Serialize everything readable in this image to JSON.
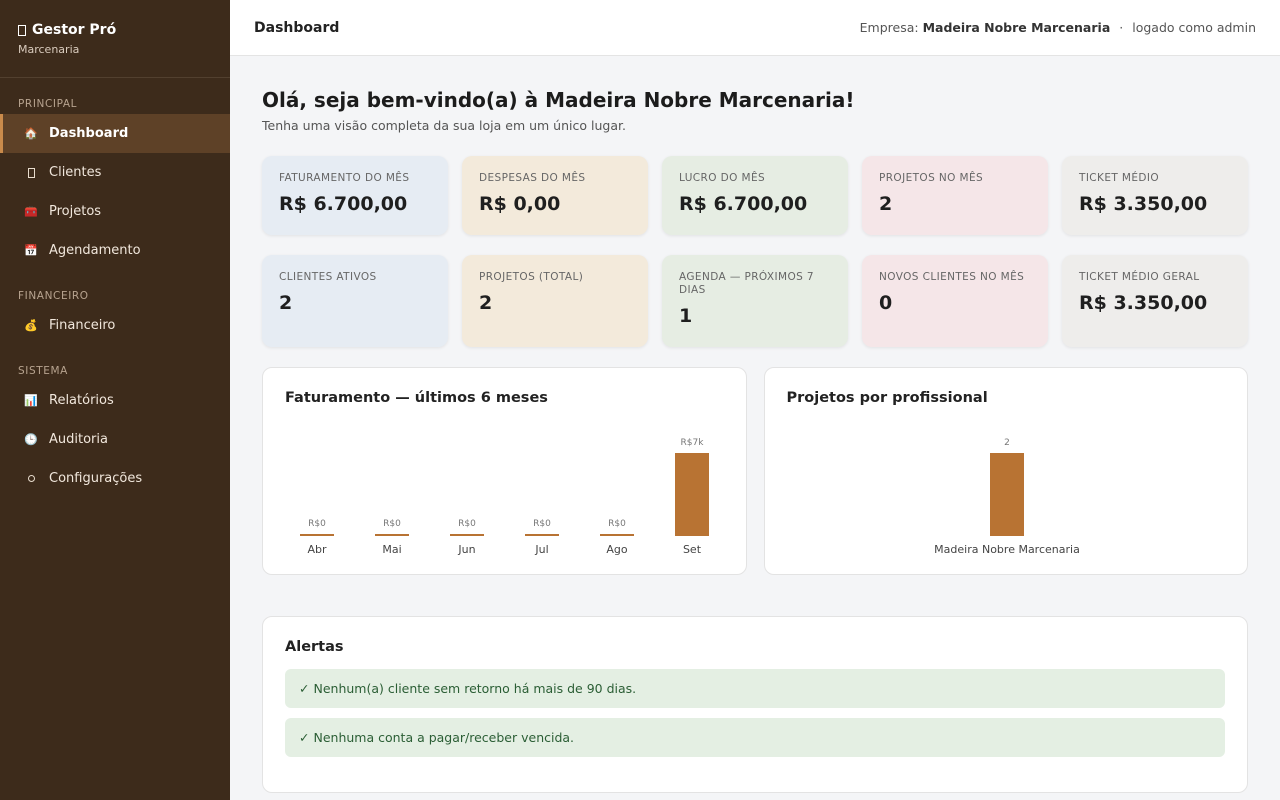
{
  "sidebar": {
    "brand_title": "Gestor Pró",
    "brand_subtitle": "Marcenaria",
    "sections": [
      {
        "title": "PRINCIPAL",
        "items": [
          {
            "label": "Dashboard",
            "icon": "house-icon",
            "glyph": "🏠",
            "active": true
          },
          {
            "label": "Clientes",
            "icon": "users-icon",
            "glyph": "",
            "active": false
          },
          {
            "label": "Projetos",
            "icon": "projects-icon",
            "glyph": "🧰",
            "active": false
          },
          {
            "label": "Agendamento",
            "icon": "calendar-icon",
            "glyph": "📅",
            "active": false
          }
        ]
      },
      {
        "title": "FINANCEIRO",
        "items": [
          {
            "label": "Financeiro",
            "icon": "money-bag-icon",
            "glyph": "💰",
            "active": false
          }
        ]
      },
      {
        "title": "SISTEMA",
        "items": [
          {
            "label": "Relatórios",
            "icon": "bar-chart-icon",
            "glyph": "📊",
            "active": false
          },
          {
            "label": "Auditoria",
            "icon": "clock-icon",
            "glyph": "🕒",
            "active": false
          },
          {
            "label": "Configurações",
            "icon": "gear-icon",
            "glyph": "",
            "active": false
          }
        ]
      }
    ]
  },
  "topbar": {
    "title": "Dashboard",
    "company_label": "Empresa:",
    "company_name": "Madeira Nobre Marcenaria",
    "separator": "·",
    "logged_as": "logado como admin"
  },
  "main": {
    "greeting": "Olá, seja bem-vindo(a) à Madeira Nobre Marcenaria!",
    "greeting_sub": "Tenha uma visão completa da sua loja em um único lugar.",
    "cards_row1": [
      {
        "label": "FATURAMENTO DO MÊS",
        "value": "R$ 6.700,00",
        "color": "#e6ecf3"
      },
      {
        "label": "DESPESAS DO MÊS",
        "value": "R$ 0,00",
        "color": "#f3eadb"
      },
      {
        "label": "LUCRO DO MÊS",
        "value": "R$ 6.700,00",
        "color": "#e6ede3"
      },
      {
        "label": "PROJETOS NO MÊS",
        "value": "2",
        "color": "#f5e6e8"
      },
      {
        "label": "TICKET MÉDIO",
        "value": "R$ 3.350,00",
        "color": "#eeedeb"
      }
    ],
    "cards_row2": [
      {
        "label": "CLIENTES ATIVOS",
        "value": "2",
        "color": "#e6ecf3"
      },
      {
        "label": "PROJETOS (TOTAL)",
        "value": "2",
        "color": "#f3eadb"
      },
      {
        "label": "AGENDA — PRÓXIMOS 7 DIAS",
        "value": "1",
        "color": "#e6ede3"
      },
      {
        "label": "NOVOS CLIENTES NO MÊS",
        "value": "0",
        "color": "#f5e6e8"
      },
      {
        "label": "TICKET MÉDIO GERAL",
        "value": "R$ 3.350,00",
        "color": "#eeedeb"
      }
    ]
  },
  "chart_data": [
    {
      "type": "bar",
      "title": "Faturamento — últimos 6 meses",
      "categories": [
        "Abr",
        "Mai",
        "Jun",
        "Jul",
        "Ago",
        "Set"
      ],
      "values": [
        0,
        0,
        0,
        0,
        0,
        6700
      ],
      "data_labels": [
        "R$0",
        "R$0",
        "R$0",
        "R$0",
        "R$0",
        "R$7k"
      ],
      "ylim": [
        0,
        6700
      ],
      "grid": false,
      "bar_color": "#b87333"
    },
    {
      "type": "bar",
      "title": "Projetos por profissional",
      "categories": [
        "Madeira Nobre Marcenaria"
      ],
      "values": [
        2
      ],
      "data_labels": [
        "2"
      ],
      "ylim": [
        0,
        2
      ],
      "grid": false,
      "bar_color": "#b87333"
    }
  ],
  "alerts": {
    "title": "Alertas",
    "items": [
      {
        "text": "Nenhum(a) cliente sem retorno há mais de 90 dias.",
        "icon": "check-icon"
      },
      {
        "text": "Nenhuma conta a pagar/receber vencida.",
        "icon": "check-icon"
      }
    ]
  }
}
